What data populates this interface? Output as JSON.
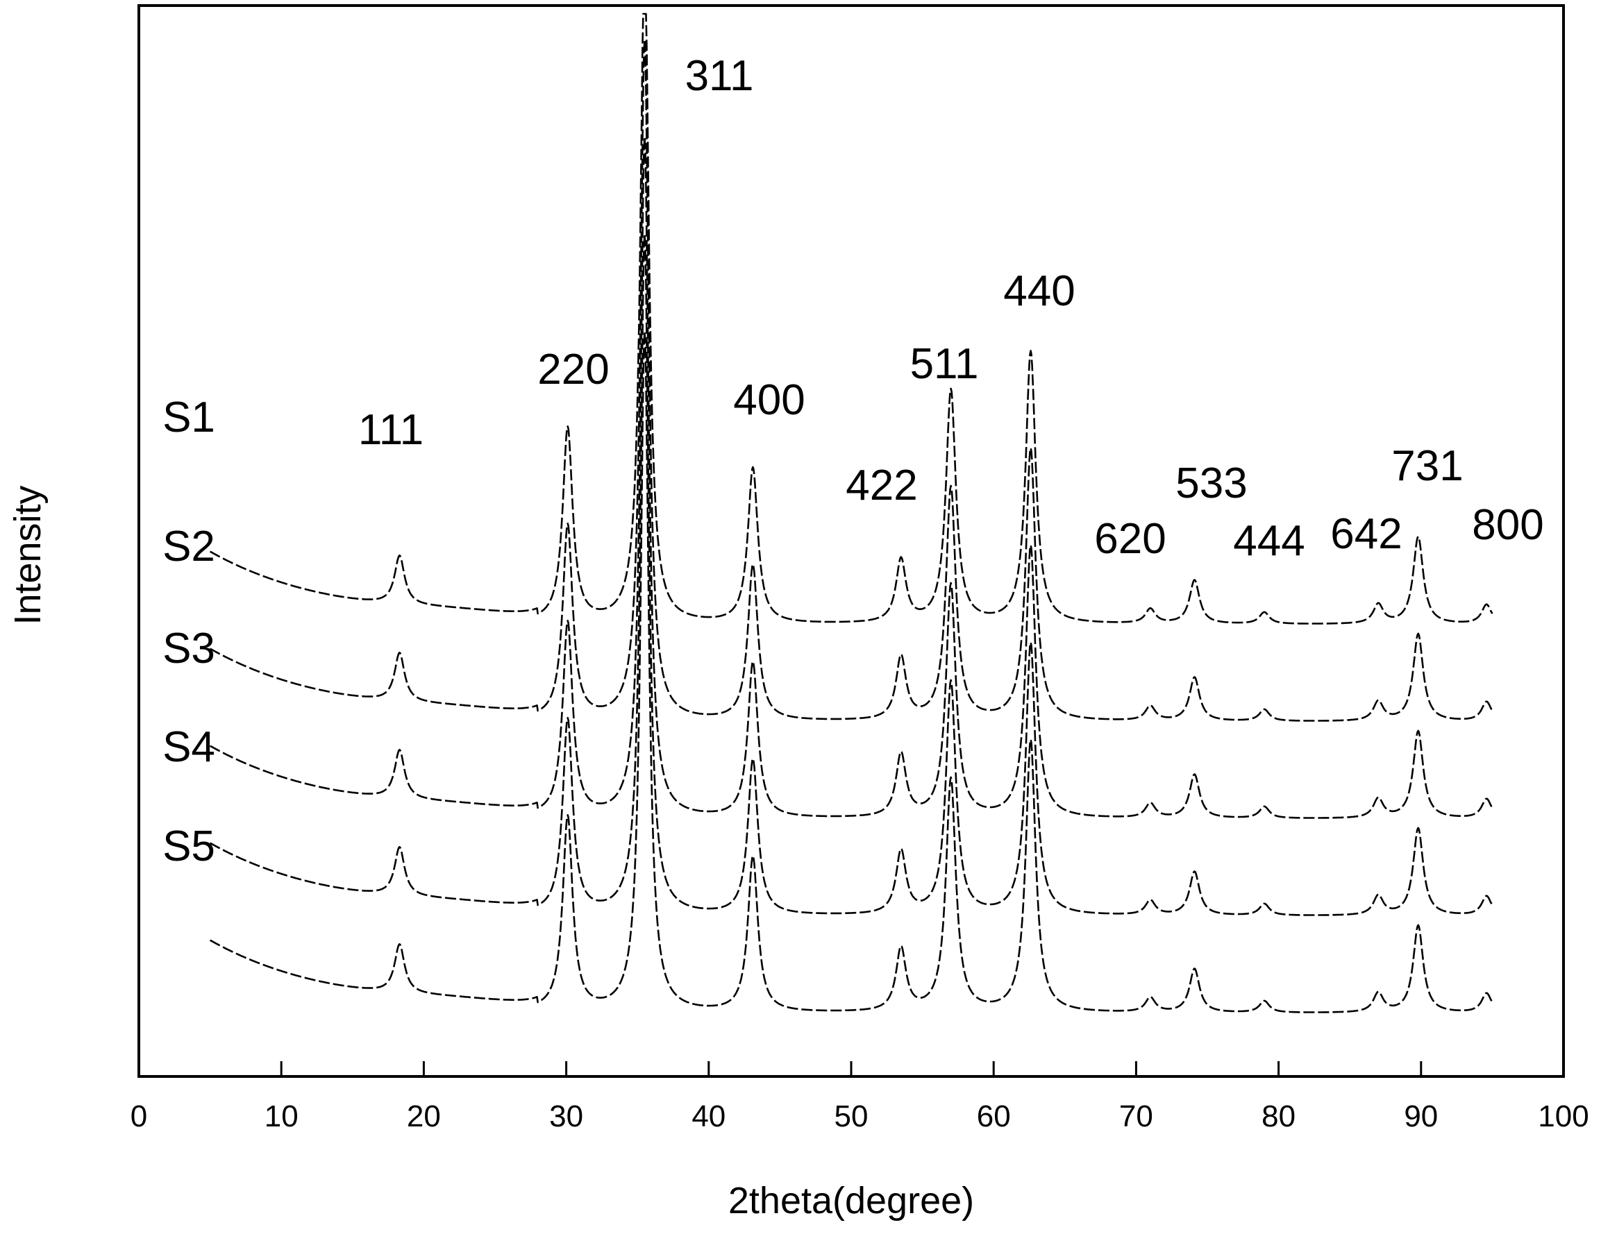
{
  "chart_data": {
    "type": "line",
    "xlabel": "2theta(degree)",
    "ylabel": "Intensity",
    "xlim": [
      0,
      100
    ],
    "xticks": [
      "0",
      "10",
      "20",
      "30",
      "40",
      "50",
      "60",
      "70",
      "80",
      "90",
      "100"
    ],
    "y_ticks_shown": false,
    "grid": false,
    "legend": "series labels at left of each trace",
    "peaks": [
      {
        "label": "111",
        "x": 18.3,
        "amp": 0.5
      },
      {
        "label": "220",
        "x": 30.1,
        "amp": 2.0
      },
      {
        "label": "311",
        "x": 35.5,
        "amp": 7.0
      },
      {
        "label": "400",
        "x": 43.1,
        "amp": 1.6
      },
      {
        "label": "422",
        "x": 53.5,
        "amp": 0.65
      },
      {
        "label": "511",
        "x": 57.0,
        "amp": 2.4
      },
      {
        "label": "440",
        "x": 62.6,
        "amp": 2.8
      },
      {
        "label": "620",
        "x": 71.0,
        "amp": 0.15
      },
      {
        "label": "533",
        "x": 74.1,
        "amp": 0.45
      },
      {
        "label": "444",
        "x": 79.0,
        "amp": 0.12
      },
      {
        "label": "642",
        "x": 87.0,
        "amp": 0.2
      },
      {
        "label": "731",
        "x": 89.8,
        "amp": 0.9
      },
      {
        "label": "800",
        "x": 94.6,
        "amp": 0.2
      }
    ],
    "series": [
      {
        "name": "S1",
        "offset": 4
      },
      {
        "name": "S2",
        "offset": 3
      },
      {
        "name": "S3",
        "offset": 2
      },
      {
        "name": "S4",
        "offset": 1
      },
      {
        "name": "S5",
        "offset": 0
      }
    ]
  }
}
